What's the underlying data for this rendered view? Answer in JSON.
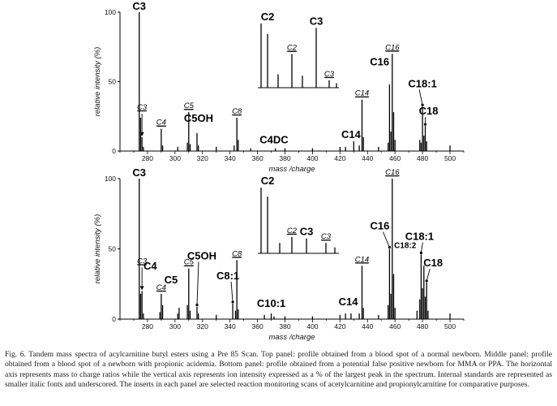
{
  "chart_data": [
    {
      "type": "bar",
      "panel": "top",
      "xlabel": "mass /charge",
      "ylabel": "relative intensity (%)",
      "xlim": [
        260,
        510
      ],
      "ylim": [
        0,
        100
      ],
      "x_ticks": [
        280,
        300,
        320,
        340,
        360,
        380,
        400,
        420,
        440,
        460,
        480,
        500
      ],
      "y_ticks": [
        0,
        50,
        100
      ],
      "peaks": [
        {
          "x": 274,
          "y": 100
        },
        {
          "x": 275,
          "y": 24
        },
        {
          "x": 276,
          "y": 10
        },
        {
          "x": 277,
          "y": 3
        },
        {
          "x": 290,
          "y": 16
        },
        {
          "x": 291,
          "y": 4
        },
        {
          "x": 302,
          "y": 3
        },
        {
          "x": 309,
          "y": 6
        },
        {
          "x": 310,
          "y": 28
        },
        {
          "x": 311,
          "y": 5
        },
        {
          "x": 316,
          "y": 13
        },
        {
          "x": 317,
          "y": 4
        },
        {
          "x": 330,
          "y": 3
        },
        {
          "x": 343,
          "y": 4
        },
        {
          "x": 345,
          "y": 24
        },
        {
          "x": 346,
          "y": 8
        },
        {
          "x": 355,
          "y": 2
        },
        {
          "x": 373,
          "y": 2
        },
        {
          "x": 380,
          "y": 2
        },
        {
          "x": 400,
          "y": 2
        },
        {
          "x": 420,
          "y": 3
        },
        {
          "x": 424,
          "y": 3
        },
        {
          "x": 430,
          "y": 7
        },
        {
          "x": 434,
          "y": 4
        },
        {
          "x": 436,
          "y": 37
        },
        {
          "x": 437,
          "y": 10
        },
        {
          "x": 448,
          "y": 3
        },
        {
          "x": 455,
          "y": 6
        },
        {
          "x": 456,
          "y": 48
        },
        {
          "x": 457,
          "y": 14
        },
        {
          "x": 458,
          "y": 70
        },
        {
          "x": 459,
          "y": 28
        },
        {
          "x": 460,
          "y": 8
        },
        {
          "x": 478,
          "y": 8
        },
        {
          "x": 479,
          "y": 6
        },
        {
          "x": 480,
          "y": 32
        },
        {
          "x": 481,
          "y": 11
        },
        {
          "x": 482,
          "y": 18
        },
        {
          "x": 483,
          "y": 7
        },
        {
          "x": 500,
          "y": 4
        }
      ],
      "annotations": [
        {
          "text": "C3",
          "style": "big",
          "x": 274,
          "y": 100
        },
        {
          "text": "C3",
          "style": "std",
          "x": 276,
          "y": 10,
          "arrow": true
        },
        {
          "text": "C4",
          "style": "std",
          "x": 290,
          "y": 16
        },
        {
          "text": "C5",
          "style": "std",
          "x": 310,
          "y": 28
        },
        {
          "text": "C5OH",
          "style": "big",
          "x": 316,
          "y": 13
        },
        {
          "text": "C8",
          "style": "std",
          "x": 345,
          "y": 24
        },
        {
          "text": "C4DC",
          "style": "big",
          "x": 372,
          "y": 2
        },
        {
          "text": "C14",
          "style": "big",
          "x": 428,
          "y": 7
        },
        {
          "text": "C14",
          "style": "std",
          "x": 436,
          "y": 37
        },
        {
          "text": "C16",
          "style": "big",
          "x": 450,
          "y": 50
        },
        {
          "text": "C16",
          "style": "std",
          "x": 458,
          "y": 70
        },
        {
          "text": "C18:1",
          "style": "big",
          "x": 480,
          "y": 32,
          "arrow": true
        },
        {
          "text": "C18",
          "style": "big",
          "x": 482,
          "y": 18,
          "arrow": true
        }
      ],
      "inset": {
        "ylim": [
          0,
          100
        ],
        "peaks": [
          {
            "x": 0.04,
            "y": 86
          },
          {
            "x": 0.12,
            "y": 72
          },
          {
            "x": 0.25,
            "y": 18
          },
          {
            "x": 0.42,
            "y": 45
          },
          {
            "x": 0.55,
            "y": 16
          },
          {
            "x": 0.72,
            "y": 80
          },
          {
            "x": 0.88,
            "y": 10
          },
          {
            "x": 0.97,
            "y": 6
          }
        ],
        "labels": [
          {
            "text": "C2",
            "style": "big",
            "x": 0.12,
            "y": 86
          },
          {
            "text": "C3",
            "style": "big",
            "x": 0.72,
            "y": 80
          },
          {
            "text": "C2",
            "style": "std",
            "x": 0.42,
            "y": 45
          },
          {
            "text": "C3",
            "style": "std",
            "x": 0.88,
            "y": 10
          }
        ]
      }
    },
    {
      "type": "bar",
      "panel": "bottom",
      "xlabel": "mass /charge",
      "ylabel": "relative intensity (%)",
      "xlim": [
        260,
        510
      ],
      "ylim": [
        0,
        100
      ],
      "x_ticks": [
        280,
        300,
        320,
        340,
        360,
        380,
        400,
        420,
        440,
        460,
        480,
        500
      ],
      "y_ticks": [
        0,
        50,
        100
      ],
      "peaks": [
        {
          "x": 274,
          "y": 100
        },
        {
          "x": 275,
          "y": 18
        },
        {
          "x": 276,
          "y": 20
        },
        {
          "x": 277,
          "y": 4
        },
        {
          "x": 289,
          "y": 5
        },
        {
          "x": 290,
          "y": 18
        },
        {
          "x": 291,
          "y": 10
        },
        {
          "x": 302,
          "y": 4
        },
        {
          "x": 303,
          "y": 8
        },
        {
          "x": 309,
          "y": 10
        },
        {
          "x": 310,
          "y": 36
        },
        {
          "x": 311,
          "y": 6
        },
        {
          "x": 316,
          "y": 9
        },
        {
          "x": 317,
          "y": 4
        },
        {
          "x": 330,
          "y": 3
        },
        {
          "x": 342,
          "y": 11
        },
        {
          "x": 344,
          "y": 6
        },
        {
          "x": 345,
          "y": 42
        },
        {
          "x": 346,
          "y": 7
        },
        {
          "x": 365,
          "y": 3
        },
        {
          "x": 370,
          "y": 4
        },
        {
          "x": 372,
          "y": 2
        },
        {
          "x": 380,
          "y": 2
        },
        {
          "x": 400,
          "y": 2
        },
        {
          "x": 420,
          "y": 3
        },
        {
          "x": 424,
          "y": 4
        },
        {
          "x": 428,
          "y": 4
        },
        {
          "x": 434,
          "y": 4
        },
        {
          "x": 436,
          "y": 38
        },
        {
          "x": 437,
          "y": 8
        },
        {
          "x": 448,
          "y": 3
        },
        {
          "x": 455,
          "y": 10
        },
        {
          "x": 456,
          "y": 50
        },
        {
          "x": 457,
          "y": 18
        },
        {
          "x": 458,
          "y": 100
        },
        {
          "x": 459,
          "y": 32
        },
        {
          "x": 460,
          "y": 8
        },
        {
          "x": 476,
          "y": 6
        },
        {
          "x": 478,
          "y": 14
        },
        {
          "x": 479,
          "y": 46
        },
        {
          "x": 480,
          "y": 22
        },
        {
          "x": 481,
          "y": 38
        },
        {
          "x": 482,
          "y": 16
        },
        {
          "x": 483,
          "y": 26
        },
        {
          "x": 484,
          "y": 6
        },
        {
          "x": 500,
          "y": 4
        }
      ],
      "annotations": [
        {
          "text": "C3",
          "style": "big",
          "x": 274,
          "y": 100
        },
        {
          "text": "C3",
          "style": "std",
          "x": 276,
          "y": 20,
          "arrow": true
        },
        {
          "text": "C4",
          "style": "big",
          "x": 282,
          "y": 18
        },
        {
          "text": "C4",
          "style": "std",
          "x": 290,
          "y": 18
        },
        {
          "text": "C5",
          "style": "big",
          "x": 303,
          "y": 8
        },
        {
          "text": "C5",
          "style": "std",
          "x": 310,
          "y": 36
        },
        {
          "text": "C5OH",
          "style": "big",
          "x": 316,
          "y": 9,
          "arrow": true
        },
        {
          "text": "C8",
          "style": "std",
          "x": 345,
          "y": 42
        },
        {
          "text": "C8:1",
          "style": "big",
          "x": 342,
          "y": 11,
          "arrow": true
        },
        {
          "text": "C10:1",
          "style": "big",
          "x": 370,
          "y": 4
        },
        {
          "text": "C14",
          "style": "big",
          "x": 426,
          "y": 4
        },
        {
          "text": "C14",
          "style": "std",
          "x": 436,
          "y": 38
        },
        {
          "text": "C16",
          "style": "big",
          "x": 456,
          "y": 50,
          "arrow": true
        },
        {
          "text": "C16",
          "style": "std",
          "x": 458,
          "y": 100
        },
        {
          "text": "C18:1",
          "style": "big",
          "x": 479,
          "y": 46,
          "arrow": true
        },
        {
          "text": "C18:2",
          "style": "big",
          "x": 478,
          "y": 46
        },
        {
          "text": "C18",
          "style": "big",
          "x": 483,
          "y": 26,
          "arrow": true
        }
      ],
      "inset": {
        "ylim": [
          0,
          100
        ],
        "peaks": [
          {
            "x": 0.04,
            "y": 88
          },
          {
            "x": 0.12,
            "y": 76
          },
          {
            "x": 0.27,
            "y": 14
          },
          {
            "x": 0.42,
            "y": 22
          },
          {
            "x": 0.6,
            "y": 20
          },
          {
            "x": 0.84,
            "y": 14
          },
          {
            "x": 0.95,
            "y": 8
          }
        ],
        "labels": [
          {
            "text": "C2",
            "style": "big",
            "x": 0.12,
            "y": 88
          },
          {
            "text": "C3",
            "style": "big",
            "x": 0.6,
            "y": 20
          },
          {
            "text": "C2",
            "style": "std",
            "x": 0.42,
            "y": 22
          },
          {
            "text": "C3",
            "style": "std",
            "x": 0.84,
            "y": 14
          }
        ]
      }
    }
  ],
  "caption": "Fig. 6. Tandem mass spectra of acylcarnitine butyl esters using a Pre 85 Scan. Top panel: profile obtained from a blood spot of a normal newborn. Middle panel: profile obtained from a blood spot of a newborn with propionic acidemia. Bottom panel: profile obtained from a potential false positive newborn for MMA or PPA. The horizontal axis represents mass to charge ratios while the vertical axis represents ion intensity expressed as a % of the largest peak in the spectrum. Internal standards are represented as smaller italic fonts and underscored. The inserts in each panel are selected reaction monitoring scans of acetylcarnitine and propionylcarnitine for comparative purposes."
}
